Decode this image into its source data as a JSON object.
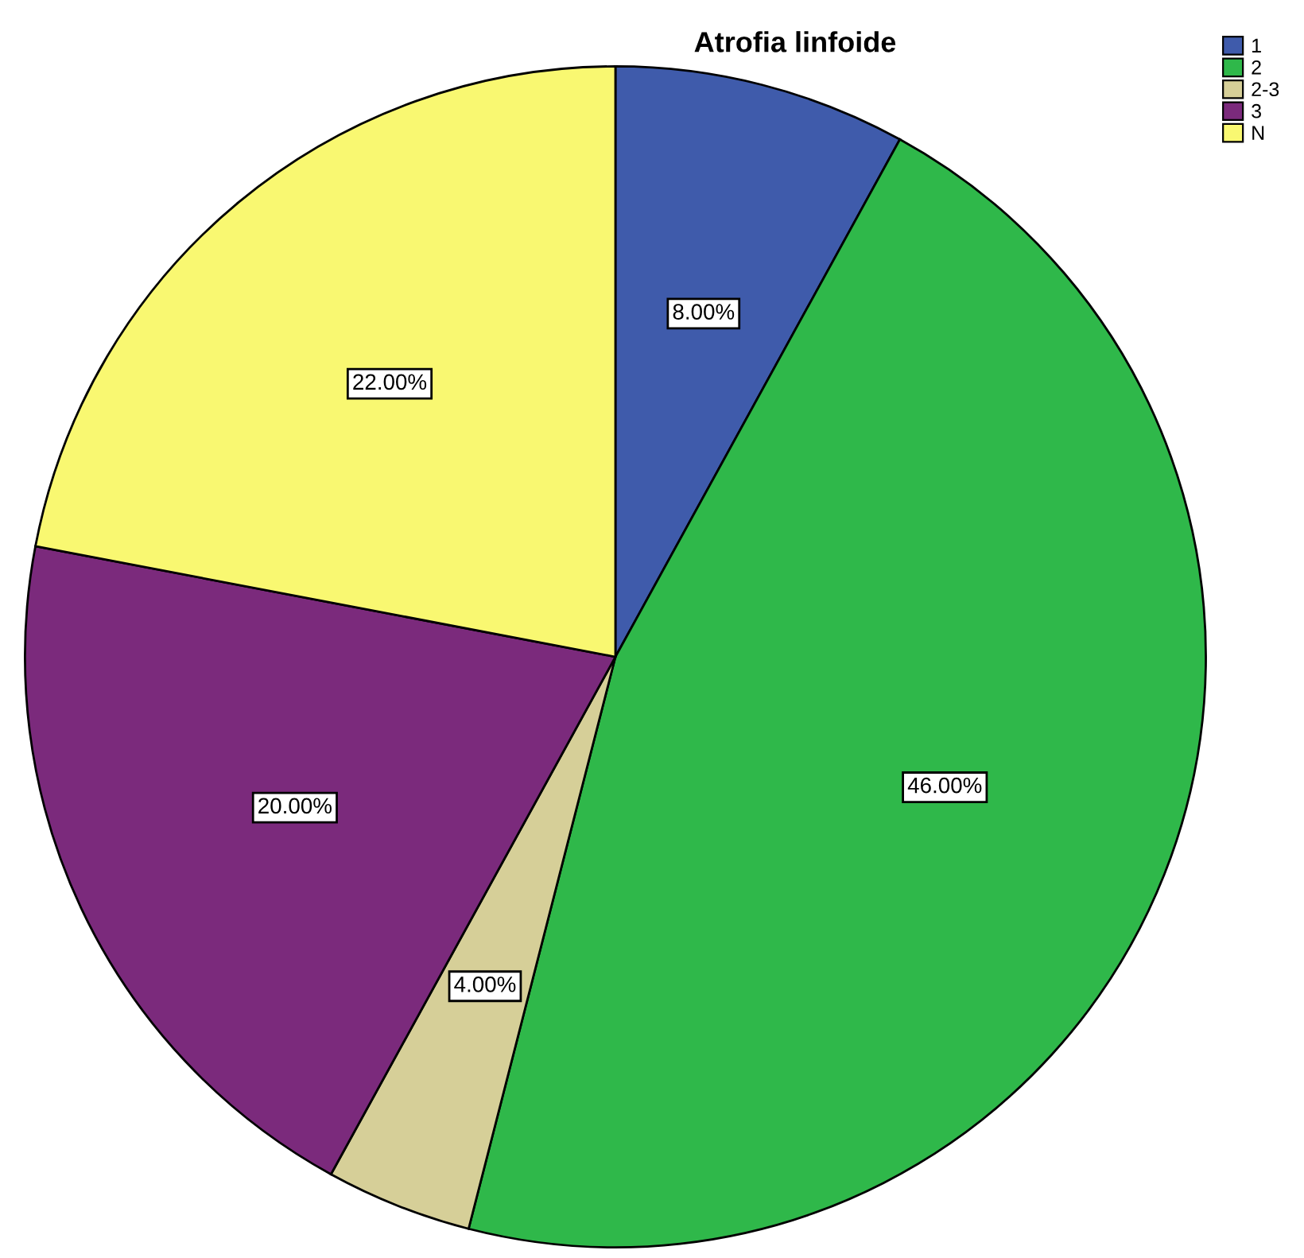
{
  "chart_data": {
    "type": "pie",
    "title": "Atrofia linfoide",
    "categories": [
      "1",
      "2",
      "2-3",
      "3",
      "N"
    ],
    "values": [
      8,
      46,
      4,
      20,
      22
    ],
    "colors": [
      "#3f5bab",
      "#2fb84a",
      "#d6cf98",
      "#7b2a7c",
      "#f9f871"
    ],
    "value_labels": [
      "8.00%",
      "46.00%",
      "4.00%",
      "20.00%",
      "22.00%"
    ],
    "legend": "top right"
  }
}
